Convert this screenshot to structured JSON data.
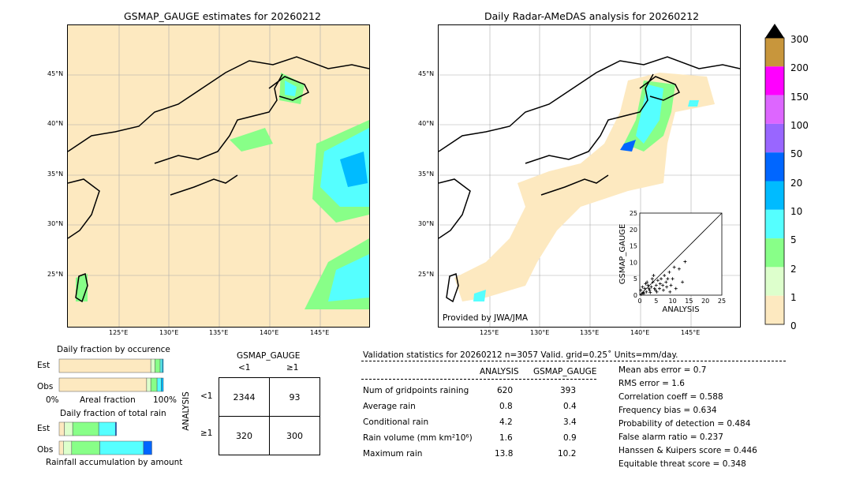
{
  "left_map": {
    "title": "GSMAP_GAUGE estimates for 20260212",
    "lat_ticks": [
      "45°N",
      "40°N",
      "35°N",
      "30°N",
      "25°N"
    ],
    "lon_ticks": [
      "125°E",
      "130°E",
      "135°E",
      "140°E",
      "145°E"
    ]
  },
  "right_map": {
    "title": "Daily Radar-AMeDAS analysis for 20260212",
    "lat_ticks": [
      "45°N",
      "40°N",
      "35°N",
      "30°N",
      "25°N"
    ],
    "lon_ticks": [
      "125°E",
      "130°E",
      "135°E",
      "140°E",
      "145°E"
    ],
    "credit": "Provided by JWA/JMA"
  },
  "colorbar": {
    "labels": [
      "300",
      "200",
      "150",
      "100",
      "50",
      "20",
      "10",
      "5",
      "2",
      "1",
      "0"
    ],
    "colors": [
      "#c8963c",
      "#ff00ff",
      "#dd66ff",
      "#9966ff",
      "#0066ff",
      "#00bbff",
      "#55ffff",
      "#88ff88",
      "#ddffcc",
      "#fde9c0"
    ]
  },
  "chart_data": [
    {
      "type": "scatter",
      "title": "",
      "xlabel": "ANALYSIS",
      "ylabel": "GSMAP_GAUGE",
      "xlim": [
        0,
        25
      ],
      "ylim": [
        0,
        25
      ],
      "x_ticks": [
        "0",
        "5",
        "10",
        "15",
        "20",
        "25"
      ],
      "y_ticks": [
        "0",
        "5",
        "10",
        "15",
        "20",
        "25"
      ],
      "reference_line": "y=x",
      "points": [
        [
          0.5,
          0.3
        ],
        [
          1,
          0.8
        ],
        [
          1.5,
          2
        ],
        [
          2,
          1
        ],
        [
          2.5,
          3
        ],
        [
          3,
          1.5
        ],
        [
          3.5,
          2.5
        ],
        [
          4,
          4
        ],
        [
          4.5,
          2
        ],
        [
          5,
          3
        ],
        [
          5.5,
          4.5
        ],
        [
          6,
          2
        ],
        [
          6.5,
          5
        ],
        [
          7,
          3
        ],
        [
          7.5,
          6
        ],
        [
          8,
          4
        ],
        [
          8.5,
          5
        ],
        [
          9,
          7
        ],
        [
          9.5,
          3
        ],
        [
          10,
          5
        ],
        [
          11,
          2
        ],
        [
          12,
          8
        ],
        [
          13,
          4
        ],
        [
          13.8,
          10.2
        ],
        [
          0.3,
          1.5
        ],
        [
          0.8,
          2.5
        ],
        [
          1.2,
          0.5
        ],
        [
          2.2,
          4
        ],
        [
          3.2,
          0.8
        ],
        [
          4.2,
          6
        ],
        [
          5.2,
          1
        ],
        [
          6.2,
          3.5
        ],
        [
          7.2,
          1.5
        ],
        [
          8.2,
          2.5
        ],
        [
          9.2,
          1
        ],
        [
          10.5,
          8.5
        ],
        [
          1.8,
          3.5
        ],
        [
          2.8,
          2
        ],
        [
          3.8,
          5
        ],
        [
          4.8,
          1.5
        ]
      ]
    },
    {
      "type": "bar",
      "title": "Daily fraction by occurence",
      "xlabel": "Areal fraction",
      "x_ticks": [
        "0%",
        "100%"
      ],
      "categories": [
        "Est",
        "Obs"
      ],
      "series": [
        {
          "values": [
            0.88,
            0.84
          ]
        },
        {
          "values": [
            0.04,
            0.04
          ]
        },
        {
          "values": [
            0.05,
            0.06
          ]
        },
        {
          "values": [
            0.02,
            0.04
          ]
        },
        {
          "values": [
            0.01,
            0.02
          ]
        }
      ]
    },
    {
      "type": "bar",
      "title": "Daily fraction of total rain",
      "xlabel": "Rainfall accumulation by amount",
      "categories": [
        "Est",
        "Obs"
      ],
      "series": [
        {
          "values": [
            0.05,
            0.04
          ]
        },
        {
          "values": [
            0.08,
            0.08
          ]
        },
        {
          "values": [
            0.25,
            0.27
          ]
        },
        {
          "values": [
            0.16,
            0.42
          ]
        },
        {
          "values": [
            0.01,
            0.08
          ]
        }
      ]
    },
    {
      "type": "table",
      "title": "GSMAP_GAUGE",
      "col_labels": [
        "<1",
        "≥1"
      ],
      "row_title": "ANALYSIS",
      "row_labels": [
        "<1",
        "≥1"
      ],
      "cells": [
        [
          "2344",
          "93"
        ],
        [
          "320",
          "300"
        ]
      ]
    }
  ],
  "validation": {
    "header": "Validation statistics for 20260212  n=3057 Valid. grid=0.25˚ Units=mm/day.",
    "col_analysis": "ANALYSIS",
    "col_gsmap": "GSMAP_GAUGE",
    "rows": [
      {
        "label": "Num of gridpoints raining",
        "a": "620",
        "g": "393"
      },
      {
        "label": "Average rain",
        "a": "0.8",
        "g": "0.4"
      },
      {
        "label": "Conditional rain",
        "a": "4.2",
        "g": "3.4"
      },
      {
        "label": "Rain volume (mm km²10⁶)",
        "a": "1.6",
        "g": "0.9"
      },
      {
        "label": "Maximum rain",
        "a": "13.8",
        "g": "10.2"
      }
    ],
    "scores": [
      "Mean abs error =    0.7",
      "RMS error =    1.6",
      "Correlation coeff =  0.588",
      "Frequency bias =  0.634",
      "Probability of detection =  0.484",
      "False alarm ratio =  0.237",
      "Hanssen & Kuipers score =  0.446",
      "Equitable threat score =  0.348"
    ]
  }
}
